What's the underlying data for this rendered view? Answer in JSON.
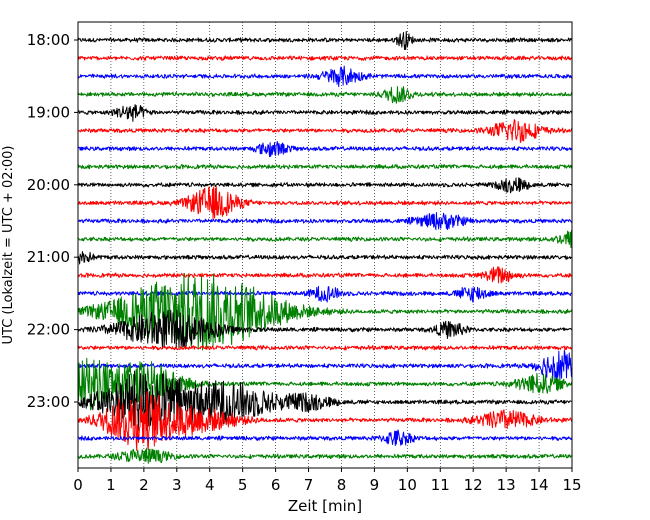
{
  "chart_data": {
    "type": "line",
    "title": "",
    "xlabel": "Zeit  [min]",
    "ylabel": "UTC (Lokalzeit = UTC + 02:00)",
    "xlim": [
      0,
      15
    ],
    "x_ticks": [
      "0",
      "1",
      "2",
      "3",
      "4",
      "5",
      "6",
      "7",
      "8",
      "9",
      "10",
      "11",
      "12",
      "13",
      "14",
      "15"
    ],
    "y_ticks": [
      "18:00",
      "19:00",
      "20:00",
      "21:00",
      "22:00",
      "23:00"
    ],
    "trace_minutes": 15,
    "first_trace": "18:00",
    "grid": "vertical dotted",
    "colors": [
      "#000000",
      "#ff0000",
      "#0000ff",
      "#008000"
    ],
    "series": [
      {
        "start": "18:00",
        "amplitude": 0.3,
        "bursts": [
          {
            "t": 9.9,
            "a": 1.3,
            "w": 0.15
          }
        ]
      },
      {
        "start": "18:15",
        "amplitude": 0.3,
        "bursts": []
      },
      {
        "start": "18:30",
        "amplitude": 0.3,
        "bursts": [
          {
            "t": 8.0,
            "a": 1.4,
            "w": 0.4
          }
        ]
      },
      {
        "start": "18:45",
        "amplitude": 0.3,
        "bursts": [
          {
            "t": 9.7,
            "a": 1.3,
            "w": 0.3
          }
        ]
      },
      {
        "start": "19:00",
        "amplitude": 0.3,
        "bursts": [
          {
            "t": 1.6,
            "a": 1.3,
            "w": 0.3
          }
        ]
      },
      {
        "start": "19:15",
        "amplitude": 0.3,
        "bursts": [
          {
            "t": 13.3,
            "a": 1.8,
            "w": 0.5
          }
        ]
      },
      {
        "start": "19:30",
        "amplitude": 0.3,
        "bursts": [
          {
            "t": 5.9,
            "a": 1.2,
            "w": 0.3
          }
        ]
      },
      {
        "start": "19:45",
        "amplitude": 0.3,
        "bursts": []
      },
      {
        "start": "20:00",
        "amplitude": 0.3,
        "bursts": [
          {
            "t": 13.2,
            "a": 1.2,
            "w": 0.3
          }
        ]
      },
      {
        "start": "20:15",
        "amplitude": 0.3,
        "bursts": [
          {
            "t": 4.1,
            "a": 2.6,
            "w": 0.5
          }
        ]
      },
      {
        "start": "20:30",
        "amplitude": 0.3,
        "bursts": [
          {
            "t": 11.0,
            "a": 1.2,
            "w": 0.5
          }
        ]
      },
      {
        "start": "20:45",
        "amplitude": 0.3,
        "bursts": [
          {
            "t": 15.0,
            "a": 1.3,
            "w": 0.3
          }
        ]
      },
      {
        "start": "21:00",
        "amplitude": 0.3,
        "bursts": [
          {
            "t": 0.1,
            "a": 1.2,
            "w": 0.2
          }
        ]
      },
      {
        "start": "21:15",
        "amplitude": 0.3,
        "bursts": [
          {
            "t": 12.8,
            "a": 1.3,
            "w": 0.3
          }
        ]
      },
      {
        "start": "21:30",
        "amplitude": 0.3,
        "bursts": [
          {
            "t": 7.5,
            "a": 1.2,
            "w": 0.3
          },
          {
            "t": 12.0,
            "a": 1.2,
            "w": 0.3
          }
        ]
      },
      {
        "start": "21:45",
        "amplitude": 0.3,
        "bursts": [
          {
            "t": 3.2,
            "a": 5.5,
            "w": 1.4
          },
          {
            "t": 5.0,
            "a": 2.2,
            "w": 1.2
          }
        ]
      },
      {
        "start": "22:00",
        "amplitude": 0.3,
        "bursts": [
          {
            "t": 2.7,
            "a": 3.0,
            "w": 1.0
          },
          {
            "t": 11.3,
            "a": 1.3,
            "w": 0.3
          }
        ]
      },
      {
        "start": "22:15",
        "amplitude": 0.3,
        "bursts": []
      },
      {
        "start": "22:30",
        "amplitude": 0.3,
        "bursts": [
          {
            "t": 14.6,
            "a": 2.6,
            "w": 0.4
          }
        ]
      },
      {
        "start": "22:45",
        "amplitude": 0.3,
        "bursts": [
          {
            "t": 0.4,
            "a": 4.0,
            "w": 0.6
          },
          {
            "t": 2.1,
            "a": 3.5,
            "w": 0.7
          },
          {
            "t": 14.0,
            "a": 1.5,
            "w": 0.5
          }
        ]
      },
      {
        "start": "23:00",
        "amplitude": 0.3,
        "bursts": [
          {
            "t": 2.0,
            "a": 5.0,
            "w": 0.9
          },
          {
            "t": 4.5,
            "a": 3.3,
            "w": 1.0
          },
          {
            "t": 7.0,
            "a": 1.2,
            "w": 0.5
          }
        ]
      },
      {
        "start": "23:15",
        "amplitude": 0.3,
        "bursts": [
          {
            "t": 1.8,
            "a": 4.5,
            "w": 0.7
          },
          {
            "t": 3.5,
            "a": 2.0,
            "w": 0.9
          },
          {
            "t": 13.0,
            "a": 1.5,
            "w": 0.6
          }
        ]
      },
      {
        "start": "23:30",
        "amplitude": 0.3,
        "bursts": [
          {
            "t": 9.7,
            "a": 1.2,
            "w": 0.3
          }
        ]
      },
      {
        "start": "23:45",
        "amplitude": 0.3,
        "bursts": [
          {
            "t": 2.0,
            "a": 1.2,
            "w": 0.5
          }
        ]
      }
    ]
  }
}
